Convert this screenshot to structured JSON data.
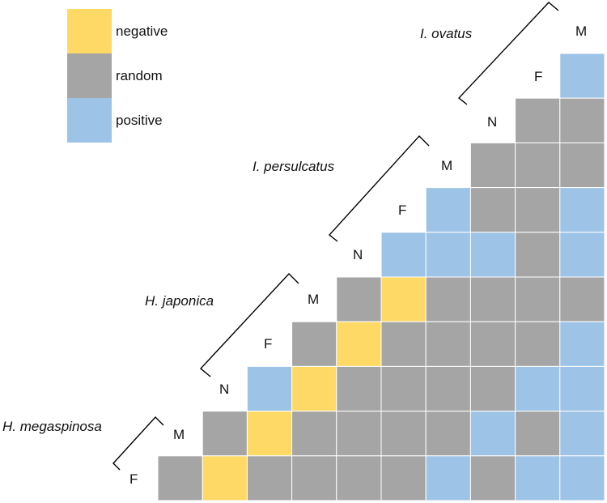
{
  "chart_data": {
    "type": "heatmap",
    "shape": "lower-triangle",
    "title": "",
    "legend": {
      "placement": "top-left",
      "items": [
        {
          "key": "negative",
          "label": "negative",
          "color": "#FED966"
        },
        {
          "key": "random",
          "label": "random",
          "color": "#A5A5A5"
        },
        {
          "key": "positive",
          "label": "positive",
          "color": "#9DC3E6"
        }
      ]
    },
    "species": [
      {
        "name": "I. ovatus",
        "stages": [
          "F",
          "M"
        ]
      },
      {
        "name": "I. persulcatus",
        "stages": [
          "N",
          "F",
          "M"
        ]
      },
      {
        "name": "H. japonica",
        "stages": [
          "N",
          "F",
          "M"
        ]
      },
      {
        "name": "H. megaspinosa",
        "stages": [
          "F",
          "M"
        ]
      }
    ],
    "extra_stage_labels": [
      {
        "after_species": "I. ovatus",
        "label": "M",
        "note": "top-right label"
      },
      {
        "species": "I. ovatus",
        "label": "N",
        "note": "label above grid column 8"
      }
    ],
    "rows": [
      "I. ovatus F",
      "I. ovatus N",
      "I. persulcatus M",
      "I. persulcatus F",
      "I. persulcatus N",
      "H. japonica M",
      "H. japonica F",
      "H. japonica N",
      "H. megaspinosa M",
      "H. megaspinosa F"
    ],
    "values": [
      [
        "positive"
      ],
      [
        "random",
        "random"
      ],
      [
        "random",
        "random",
        "random"
      ],
      [
        "positive",
        "random",
        "random",
        "positive"
      ],
      [
        "positive",
        "positive",
        "positive",
        "random",
        "positive"
      ],
      [
        "random",
        "negative",
        "random",
        "random",
        "random",
        "random"
      ],
      [
        "random",
        "negative",
        "random",
        "random",
        "random",
        "random",
        "positive"
      ],
      [
        "positive",
        "negative",
        "random",
        "random",
        "random",
        "random",
        "positive",
        "positive"
      ],
      [
        "random",
        "negative",
        "random",
        "random",
        "random",
        "random",
        "positive",
        "random",
        "positive"
      ],
      [
        "random",
        "negative",
        "random",
        "random",
        "random",
        "random",
        "positive",
        "random",
        "positive",
        "positive"
      ]
    ]
  }
}
